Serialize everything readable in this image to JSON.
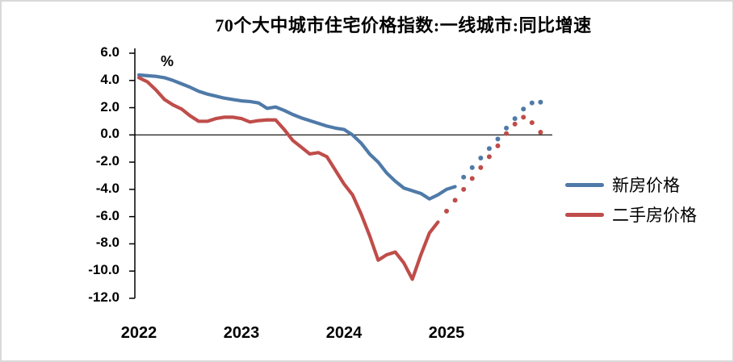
{
  "chart_data": {
    "type": "line",
    "title": "70个大中城市住宅价格指数:一线城市:同比增速",
    "unit_label": "%",
    "x_start": "2022-01",
    "frequency": "monthly",
    "x_tick_labels": [
      "2022",
      "2023",
      "2024",
      "2025"
    ],
    "y_tick_labels": [
      "6.0",
      "4.0",
      "2.0",
      "0.0",
      "-2.0",
      "-4.0",
      "-6.0",
      "-8.0",
      "-10.0",
      "-12.0"
    ],
    "ylim": [
      -12,
      6
    ],
    "grid": false,
    "legend_position": "right",
    "note": "dotted points are forecast values",
    "series": [
      {
        "name": "新房价格",
        "color": "#4f7aa8",
        "forecast_start_index": 38,
        "values": [
          4.4,
          4.35,
          4.3,
          4.2,
          4.0,
          3.75,
          3.5,
          3.2,
          3.0,
          2.85,
          2.7,
          2.6,
          2.5,
          2.45,
          2.35,
          1.95,
          2.05,
          1.8,
          1.5,
          1.25,
          1.05,
          0.85,
          0.65,
          0.5,
          0.4,
          0.0,
          -0.6,
          -1.4,
          -2.0,
          -2.8,
          -3.4,
          -3.9,
          -4.1,
          -4.3,
          -4.7,
          -4.4,
          -4.0,
          -3.8,
          -3.1,
          -2.4,
          -1.7,
          -1.0,
          -0.3,
          0.5,
          1.2,
          1.9,
          2.35,
          2.4
        ]
      },
      {
        "name": "二手房价格",
        "color": "#bf4d4a",
        "forecast_start_index": 36,
        "values": [
          4.2,
          3.9,
          3.3,
          2.6,
          2.2,
          1.9,
          1.4,
          1.0,
          1.0,
          1.2,
          1.3,
          1.3,
          1.2,
          0.95,
          1.05,
          1.1,
          1.1,
          0.4,
          -0.4,
          -0.9,
          -1.4,
          -1.3,
          -1.6,
          -2.6,
          -3.6,
          -4.4,
          -5.8,
          -7.4,
          -9.2,
          -8.8,
          -8.6,
          -9.4,
          -10.6,
          -8.8,
          -7.2,
          -6.4,
          -5.6,
          -4.8,
          -4.0,
          -3.2,
          -2.4,
          -1.6,
          -0.8,
          0.1,
          0.8,
          1.3,
          0.9,
          0.2
        ]
      }
    ]
  }
}
